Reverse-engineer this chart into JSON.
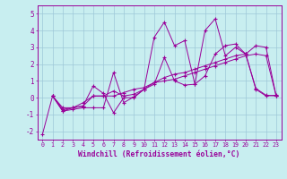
{
  "xlabel": "Windchill (Refroidissement éolien,°C)",
  "xlim": [
    -0.5,
    23.5
  ],
  "ylim": [
    -2.5,
    5.5
  ],
  "yticks": [
    -2,
    -1,
    0,
    1,
    2,
    3,
    4,
    5
  ],
  "xticks": [
    0,
    1,
    2,
    3,
    4,
    5,
    6,
    7,
    8,
    9,
    10,
    11,
    12,
    13,
    14,
    15,
    16,
    17,
    18,
    19,
    20,
    21,
    22,
    23
  ],
  "bg_color": "#c8eef0",
  "line_color": "#990099",
  "grid_color": "#9ec8d8",
  "lines": [
    {
      "x": [
        0,
        1,
        2,
        3,
        4,
        5,
        6,
        7,
        8,
        9,
        10,
        11,
        12,
        13,
        14,
        15,
        16,
        17,
        18,
        19,
        20,
        21,
        22,
        23
      ],
      "y": [
        -2.2,
        0.1,
        -0.8,
        -0.6,
        -0.5,
        0.7,
        0.25,
        -0.9,
        0.0,
        0.0,
        0.5,
        3.6,
        4.5,
        3.1,
        3.4,
        0.8,
        4.0,
        4.7,
        2.5,
        3.0,
        2.6,
        0.55,
        0.15,
        0.1
      ]
    },
    {
      "x": [
        1,
        2,
        3,
        4,
        5,
        6,
        7,
        8,
        9,
        10,
        11,
        12,
        13,
        14,
        15,
        16,
        17,
        18,
        19,
        20,
        21,
        22,
        23
      ],
      "y": [
        0.1,
        -0.7,
        -0.6,
        -0.5,
        0.1,
        0.1,
        0.4,
        0.1,
        0.2,
        0.5,
        0.9,
        1.0,
        1.1,
        1.3,
        1.5,
        1.7,
        1.9,
        2.1,
        2.3,
        2.5,
        2.6,
        2.5,
        0.1
      ]
    },
    {
      "x": [
        1,
        2,
        3,
        4,
        5,
        6,
        7,
        8,
        9,
        10,
        11,
        12,
        13,
        14,
        15,
        16,
        17,
        18,
        19,
        20,
        21,
        22,
        23
      ],
      "y": [
        0.1,
        -0.8,
        -0.7,
        -0.6,
        -0.6,
        -0.6,
        1.5,
        -0.3,
        0.05,
        0.5,
        0.8,
        2.4,
        1.0,
        0.75,
        0.8,
        1.3,
        2.6,
        3.1,
        3.2,
        2.6,
        0.5,
        0.1,
        0.15
      ]
    },
    {
      "x": [
        1,
        2,
        3,
        4,
        5,
        6,
        7,
        8,
        9,
        10,
        11,
        12,
        13,
        14,
        15,
        16,
        17,
        18,
        19,
        20,
        21,
        22,
        23
      ],
      "y": [
        0.1,
        -0.6,
        -0.6,
        -0.3,
        0.1,
        0.1,
        0.1,
        0.3,
        0.5,
        0.6,
        0.9,
        1.2,
        1.4,
        1.5,
        1.7,
        1.9,
        2.1,
        2.3,
        2.5,
        2.6,
        3.1,
        3.0,
        0.1
      ]
    }
  ]
}
